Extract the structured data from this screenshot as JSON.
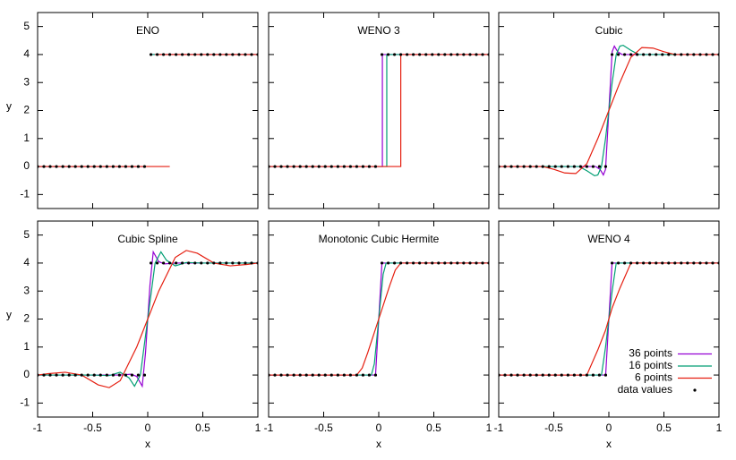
{
  "chart_data": [
    {
      "type": "line",
      "title": "ENO",
      "ylabel": "y",
      "xlim": [
        -1,
        1
      ],
      "ylim": [
        -1.5,
        5.5
      ],
      "xticks": [
        -1,
        -0.5,
        0,
        0.5,
        1
      ],
      "yticks": [
        -1,
        0,
        1,
        2,
        3,
        4,
        5
      ],
      "series": [
        {
          "color": "#9400d3",
          "x": [
            -1,
            -0.029,
            0,
            0.029,
            1
          ],
          "values": [
            0,
            0,
            null,
            4,
            4
          ]
        },
        {
          "color": "#009e73",
          "x": [
            -1,
            -0.067,
            0,
            0.029,
            1
          ],
          "values": [
            0,
            0,
            null,
            4,
            4
          ]
        },
        {
          "color": "#e51e10",
          "x": [
            -1,
            0.2,
            0.2,
            0.067,
            1
          ],
          "values": [
            0,
            0,
            null,
            4,
            4
          ]
        },
        {
          "type": "scatter",
          "color": "#000000",
          "x": [
            -1,
            -0.943,
            -0.886,
            -0.829,
            -0.771,
            -0.714,
            -0.657,
            -0.6,
            -0.543,
            -0.486,
            -0.429,
            -0.371,
            -0.314,
            -0.257,
            -0.2,
            -0.143,
            -0.086,
            -0.029,
            0.029,
            0.086,
            0.143,
            0.2,
            0.257,
            0.314,
            0.371,
            0.429,
            0.486,
            0.543,
            0.6,
            0.657,
            0.714,
            0.771,
            0.829,
            0.886,
            0.943,
            1
          ],
          "values": [
            0,
            0,
            0,
            0,
            0,
            0,
            0,
            0,
            0,
            0,
            0,
            0,
            0,
            0,
            0,
            0,
            0,
            0,
            4,
            4,
            4,
            4,
            4,
            4,
            4,
            4,
            4,
            4,
            4,
            4,
            4,
            4,
            4,
            4,
            4,
            4
          ]
        }
      ]
    },
    {
      "type": "line",
      "title": "WENO 3",
      "xlim": [
        -1,
        1
      ],
      "ylim": [
        -1.5,
        5.5
      ],
      "xticks": [
        -1,
        -0.5,
        0,
        0.5,
        1
      ],
      "yticks": [
        -1,
        0,
        1,
        2,
        3,
        4,
        5
      ],
      "series": [
        {
          "color": "#9400d3",
          "x": [
            -1,
            0.033,
            0.033,
            1
          ],
          "values": [
            0,
            0,
            4,
            4
          ]
        },
        {
          "color": "#009e73",
          "x": [
            -1,
            0.073,
            0.073,
            1
          ],
          "values": [
            0,
            0,
            4,
            4
          ]
        },
        {
          "color": "#e51e10",
          "x": [
            -1,
            0.2,
            0.2,
            1
          ],
          "values": [
            0,
            0,
            4,
            4
          ]
        },
        {
          "type": "scatter",
          "color": "#000000",
          "x": [
            -1,
            -0.943,
            -0.886,
            -0.829,
            -0.771,
            -0.714,
            -0.657,
            -0.6,
            -0.543,
            -0.486,
            -0.429,
            -0.371,
            -0.314,
            -0.257,
            -0.2,
            -0.143,
            -0.086,
            -0.029,
            0.029,
            0.086,
            0.143,
            0.2,
            0.257,
            0.314,
            0.371,
            0.429,
            0.486,
            0.543,
            0.6,
            0.657,
            0.714,
            0.771,
            0.829,
            0.886,
            0.943,
            1
          ],
          "values": [
            0,
            0,
            0,
            0,
            0,
            0,
            0,
            0,
            0,
            0,
            0,
            0,
            0,
            0,
            0,
            0,
            0,
            0,
            4,
            4,
            4,
            4,
            4,
            4,
            4,
            4,
            4,
            4,
            4,
            4,
            4,
            4,
            4,
            4,
            4,
            4
          ]
        }
      ]
    },
    {
      "type": "line",
      "title": "Cubic",
      "xlim": [
        -1,
        1
      ],
      "ylim": [
        -1.5,
        5.5
      ],
      "xticks": [
        -1,
        -0.5,
        0,
        0.5,
        1
      ],
      "yticks": [
        -1,
        0,
        1,
        2,
        3,
        4,
        5
      ],
      "series": [
        {
          "color": "#9400d3",
          "x": [
            -1,
            -0.12,
            -0.08,
            -0.05,
            -0.03,
            0,
            0.03,
            0.05,
            0.08,
            0.12,
            1
          ],
          "values": [
            0,
            0,
            -0.1,
            -0.3,
            -0.1,
            2,
            4.1,
            4.3,
            4.1,
            4,
            4
          ]
        },
        {
          "color": "#009e73",
          "x": [
            -1,
            -0.27,
            -0.2,
            -0.13,
            -0.1,
            -0.067,
            -0.03,
            0,
            0.03,
            0.067,
            0.1,
            0.13,
            0.2,
            0.27,
            1
          ],
          "values": [
            0,
            0,
            -0.15,
            -0.33,
            -0.3,
            0,
            1,
            2,
            3,
            4,
            4.3,
            4.33,
            4.15,
            4,
            4
          ]
        },
        {
          "color": "#e51e10",
          "x": [
            -1,
            -0.6,
            -0.5,
            -0.4,
            -0.3,
            -0.2,
            -0.1,
            0,
            0.1,
            0.2,
            0.3,
            0.4,
            0.5,
            0.6,
            1
          ],
          "values": [
            0,
            0,
            -0.1,
            -0.23,
            -0.25,
            0.1,
            1,
            2,
            3,
            3.9,
            4.25,
            4.23,
            4.1,
            4,
            4
          ]
        },
        {
          "type": "scatter",
          "color": "#000000",
          "x": [
            -1,
            -0.943,
            -0.886,
            -0.829,
            -0.771,
            -0.714,
            -0.657,
            -0.6,
            -0.543,
            -0.486,
            -0.429,
            -0.371,
            -0.314,
            -0.257,
            -0.2,
            -0.143,
            -0.086,
            -0.029,
            0.029,
            0.086,
            0.143,
            0.2,
            0.257,
            0.314,
            0.371,
            0.429,
            0.486,
            0.543,
            0.6,
            0.657,
            0.714,
            0.771,
            0.829,
            0.886,
            0.943,
            1
          ],
          "values": [
            0,
            0,
            0,
            0,
            0,
            0,
            0,
            0,
            0,
            0,
            0,
            0,
            0,
            0,
            0,
            0,
            0,
            0,
            4,
            4,
            4,
            4,
            4,
            4,
            4,
            4,
            4,
            4,
            4,
            4,
            4,
            4,
            4,
            4,
            4,
            4
          ]
        }
      ]
    },
    {
      "type": "line",
      "title": "Cubic Spline",
      "xlabel": "x",
      "ylabel": "y",
      "xlim": [
        -1,
        1
      ],
      "ylim": [
        -1.5,
        5.5
      ],
      "xticks": [
        -1,
        -0.5,
        0,
        0.5,
        1
      ],
      "yticks": [
        -1,
        0,
        1,
        2,
        3,
        4,
        5
      ],
      "series": [
        {
          "color": "#9400d3",
          "x": [
            -1,
            -0.25,
            -0.15,
            -0.1,
            -0.05,
            -0.02,
            0,
            0.02,
            0.05,
            0.1,
            0.15,
            0.25,
            1
          ],
          "values": [
            0,
            0,
            0.03,
            -0.05,
            -0.4,
            0.8,
            2,
            3.2,
            4.4,
            4.05,
            3.97,
            4,
            4
          ]
        },
        {
          "color": "#009e73",
          "x": [
            -1,
            -0.5,
            -0.35,
            -0.25,
            -0.17,
            -0.12,
            -0.067,
            0,
            0.067,
            0.12,
            0.17,
            0.25,
            0.35,
            0.5,
            1
          ],
          "values": [
            0,
            0,
            -0.02,
            0.1,
            -0.1,
            -0.4,
            0,
            2,
            4,
            4.4,
            4.1,
            3.9,
            4.02,
            4,
            4
          ]
        },
        {
          "color": "#e51e10",
          "x": [
            -1,
            -0.9,
            -0.75,
            -0.6,
            -0.45,
            -0.35,
            -0.25,
            -0.1,
            0,
            0.1,
            0.25,
            0.35,
            0.45,
            0.6,
            0.75,
            0.9,
            1
          ],
          "values": [
            0,
            0.05,
            0.1,
            0,
            -0.35,
            -0.45,
            -0.2,
            1,
            2,
            3,
            4.2,
            4.45,
            4.35,
            4,
            3.9,
            3.95,
            4
          ]
        },
        {
          "type": "scatter",
          "color": "#000000",
          "x": [
            -1,
            -0.943,
            -0.886,
            -0.829,
            -0.771,
            -0.714,
            -0.657,
            -0.6,
            -0.543,
            -0.486,
            -0.429,
            -0.371,
            -0.314,
            -0.257,
            -0.2,
            -0.143,
            -0.086,
            -0.029,
            0.029,
            0.086,
            0.143,
            0.2,
            0.257,
            0.314,
            0.371,
            0.429,
            0.486,
            0.543,
            0.6,
            0.657,
            0.714,
            0.771,
            0.829,
            0.886,
            0.943,
            1
          ],
          "values": [
            0,
            0,
            0,
            0,
            0,
            0,
            0,
            0,
            0,
            0,
            0,
            0,
            0,
            0,
            0,
            0,
            0,
            0,
            4,
            4,
            4,
            4,
            4,
            4,
            4,
            4,
            4,
            4,
            4,
            4,
            4,
            4,
            4,
            4,
            4,
            4
          ]
        }
      ]
    },
    {
      "type": "line",
      "title": "Monotonic Cubic Hermite",
      "xlabel": "x",
      "xlim": [
        -1,
        1
      ],
      "ylim": [
        -1.5,
        5.5
      ],
      "xticks": [
        -1,
        -0.5,
        0,
        0.5,
        1
      ],
      "yticks": [
        -1,
        0,
        1,
        2,
        3,
        4,
        5
      ],
      "series": [
        {
          "color": "#9400d3",
          "x": [
            -1,
            -0.029,
            0.029,
            1
          ],
          "values": [
            0,
            0,
            4,
            4
          ]
        },
        {
          "color": "#009e73",
          "x": [
            -1,
            -0.067,
            -0.04,
            -0.02,
            0,
            0.02,
            0.04,
            0.067,
            1
          ],
          "values": [
            0,
            0,
            0.4,
            1.2,
            2,
            2.8,
            3.6,
            4,
            4
          ]
        },
        {
          "color": "#e51e10",
          "x": [
            -1,
            -0.2,
            -0.15,
            -0.1,
            -0.05,
            0,
            0.05,
            0.1,
            0.15,
            0.2,
            1
          ],
          "values": [
            0,
            0,
            0.25,
            0.8,
            1.4,
            2,
            2.6,
            3.2,
            3.75,
            4,
            4
          ]
        },
        {
          "type": "scatter",
          "color": "#000000",
          "x": [
            -1,
            -0.943,
            -0.886,
            -0.829,
            -0.771,
            -0.714,
            -0.657,
            -0.6,
            -0.543,
            -0.486,
            -0.429,
            -0.371,
            -0.314,
            -0.257,
            -0.2,
            -0.143,
            -0.086,
            -0.029,
            0.029,
            0.086,
            0.143,
            0.2,
            0.257,
            0.314,
            0.371,
            0.429,
            0.486,
            0.543,
            0.6,
            0.657,
            0.714,
            0.771,
            0.829,
            0.886,
            0.943,
            1
          ],
          "values": [
            0,
            0,
            0,
            0,
            0,
            0,
            0,
            0,
            0,
            0,
            0,
            0,
            0,
            0,
            0,
            0,
            0,
            0,
            4,
            4,
            4,
            4,
            4,
            4,
            4,
            4,
            4,
            4,
            4,
            4,
            4,
            4,
            4,
            4,
            4,
            4
          ]
        }
      ]
    },
    {
      "type": "line",
      "title": "WENO 4",
      "xlabel": "x",
      "legend": "bottom right",
      "xlim": [
        -1,
        1
      ],
      "ylim": [
        -1.5,
        5.5
      ],
      "xticks": [
        -1,
        -0.5,
        0,
        0.5,
        1
      ],
      "yticks": [
        -1,
        0,
        1,
        2,
        3,
        4,
        5
      ],
      "series": [
        {
          "name": "36 points",
          "color": "#9400d3",
          "x": [
            -1,
            -0.029,
            0.029,
            1
          ],
          "values": [
            0,
            0,
            4,
            4
          ]
        },
        {
          "name": "16 points",
          "color": "#009e73",
          "x": [
            -1,
            -0.067,
            -0.03,
            0,
            0.03,
            0.067,
            1
          ],
          "values": [
            0,
            0,
            1,
            2,
            3,
            4,
            4
          ]
        },
        {
          "name": "6 points",
          "color": "#e51e10",
          "x": [
            -1,
            -0.2,
            -0.1,
            -0.03,
            0,
            0.03,
            0.1,
            0.2,
            1
          ],
          "values": [
            0,
            0,
            0.9,
            1.6,
            2,
            2.4,
            3.1,
            4,
            4
          ]
        },
        {
          "name": "data values",
          "type": "scatter",
          "color": "#000000",
          "x": [
            -1,
            -0.943,
            -0.886,
            -0.829,
            -0.771,
            -0.714,
            -0.657,
            -0.6,
            -0.543,
            -0.486,
            -0.429,
            -0.371,
            -0.314,
            -0.257,
            -0.2,
            -0.143,
            -0.086,
            -0.029,
            0.029,
            0.086,
            0.143,
            0.2,
            0.257,
            0.314,
            0.371,
            0.429,
            0.486,
            0.543,
            0.6,
            0.657,
            0.714,
            0.771,
            0.829,
            0.886,
            0.943,
            1
          ],
          "values": [
            0,
            0,
            0,
            0,
            0,
            0,
            0,
            0,
            0,
            0,
            0,
            0,
            0,
            0,
            0,
            0,
            0,
            0,
            4,
            4,
            4,
            4,
            4,
            4,
            4,
            4,
            4,
            4,
            4,
            4,
            4,
            4,
            4,
            4,
            4,
            4
          ]
        }
      ]
    }
  ]
}
